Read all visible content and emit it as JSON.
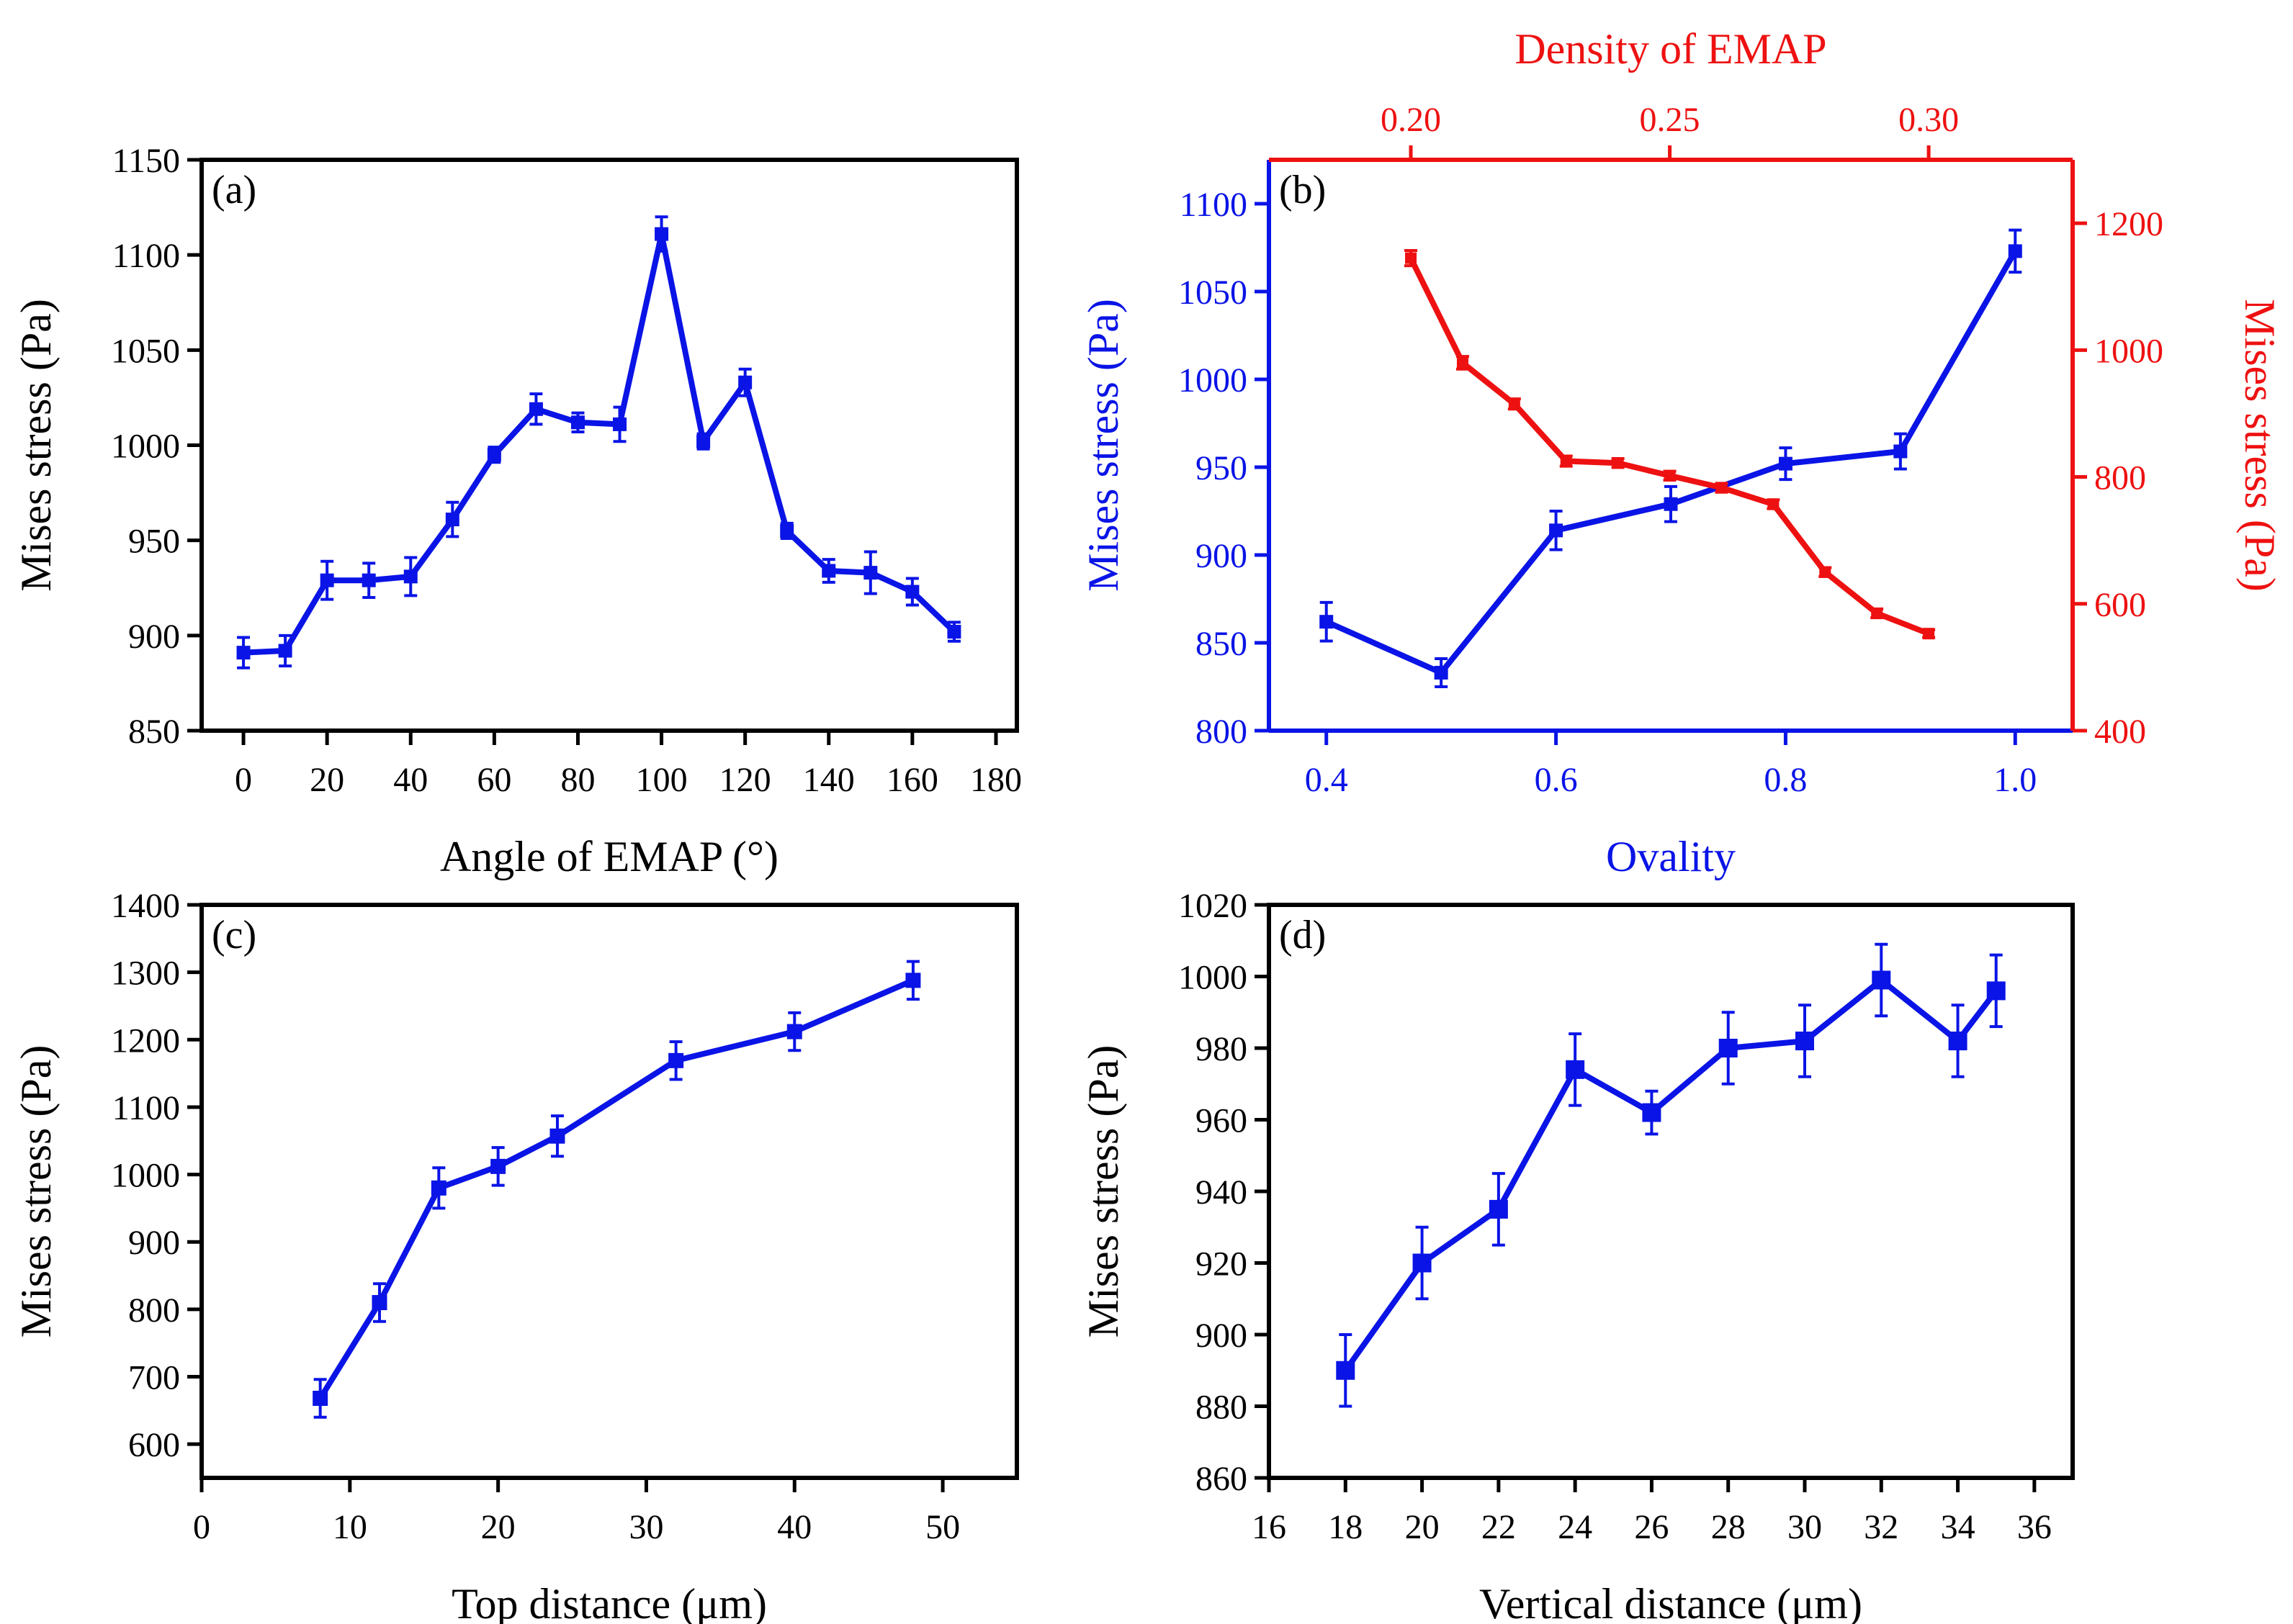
{
  "colors": {
    "blue": "#0a14e6",
    "red": "#ee1111",
    "black": "#000000"
  },
  "chart_data": [
    {
      "id": "a",
      "type": "line",
      "panel_label": "(a)",
      "xlabel": "Angle of EMAP (°)",
      "ylabel": "Mises stress (Pa)",
      "xlim": [
        -10,
        185
      ],
      "ylim": [
        850,
        1150
      ],
      "xticks": [
        0,
        20,
        40,
        60,
        80,
        100,
        120,
        140,
        160,
        180
      ],
      "yticks": [
        850,
        900,
        950,
        1000,
        1050,
        1100,
        1150
      ],
      "series": [
        {
          "name": "Mises stress",
          "color": "#0a14e6",
          "x": [
            0,
            10,
            20,
            30,
            40,
            50,
            60,
            70,
            80,
            90,
            100,
            110,
            120,
            130,
            140,
            150,
            160,
            170
          ],
          "y": [
            891,
            892,
            929,
            929,
            931,
            961,
            995,
            1019,
            1012,
            1011,
            1111,
            1002,
            1033,
            955,
            934,
            933,
            923,
            902
          ],
          "err": [
            8,
            8,
            10,
            9,
            10,
            9,
            4,
            8,
            5,
            9,
            9,
            4,
            7,
            4,
            6,
            11,
            7,
            5
          ]
        }
      ]
    },
    {
      "id": "b",
      "type": "line",
      "panel_label": "(b)",
      "xlabel": "Ovality",
      "ylabel": "Mises stress (Pa)",
      "y2label": "Mises stress (Pa)",
      "x2label": "Density of EMAP",
      "xlim": [
        0.35,
        1.05
      ],
      "ylim": [
        800,
        1125
      ],
      "xticks": [
        0.4,
        0.6,
        0.8,
        1.0
      ],
      "xtick_labels": [
        "0.4",
        "0.6",
        "0.8",
        "1.0"
      ],
      "yticks": [
        800,
        850,
        900,
        950,
        1000,
        1050,
        1100
      ],
      "x2lim": [
        0.1726,
        0.3278
      ],
      "y2lim": [
        400,
        1300
      ],
      "x2ticks": [
        0.2,
        0.25,
        0.3
      ],
      "x2tick_labels": [
        "0.20",
        "0.25",
        "0.30"
      ],
      "y2ticks": [
        400,
        600,
        800,
        1000,
        1200
      ],
      "series": [
        {
          "name": "Ovality",
          "axis": "primary",
          "color": "#0a14e6",
          "x": [
            0.4,
            0.5,
            0.6,
            0.7,
            0.8,
            0.9,
            1.0
          ],
          "y": [
            862,
            833,
            914,
            929,
            952,
            959,
            1073
          ],
          "err": [
            11,
            8,
            11,
            10,
            9,
            10,
            12
          ]
        },
        {
          "name": "Density",
          "axis": "secondary",
          "color": "#ee1111",
          "x": [
            0.2,
            0.21,
            0.22,
            0.23,
            0.24,
            0.25,
            0.26,
            0.27,
            0.28,
            0.29,
            0.3
          ],
          "y": [
            1145,
            980,
            915,
            825,
            822,
            802,
            783,
            757,
            650,
            585,
            553
          ],
          "err": [
            12,
            10,
            8,
            8,
            7,
            7,
            7,
            7,
            7,
            7,
            6
          ]
        }
      ]
    },
    {
      "id": "c",
      "type": "line",
      "panel_label": "(c)",
      "xlabel": "Top distance (μm)",
      "ylabel": "Mises stress (Pa)",
      "xlim": [
        0,
        55
      ],
      "ylim": [
        550,
        1400
      ],
      "xticks": [
        0,
        10,
        20,
        30,
        40,
        50
      ],
      "yticks": [
        600,
        700,
        800,
        900,
        1000,
        1100,
        1200,
        1300,
        1400
      ],
      "series": [
        {
          "name": "Mises stress",
          "color": "#0a14e6",
          "x": [
            8,
            12,
            16,
            20,
            24,
            32,
            40,
            48
          ],
          "y": [
            668,
            810,
            980,
            1012,
            1057,
            1169,
            1212,
            1288
          ],
          "err": [
            28,
            28,
            30,
            28,
            30,
            28,
            28,
            28
          ]
        }
      ]
    },
    {
      "id": "d",
      "type": "line",
      "panel_label": "(d)",
      "xlabel": "Vertical distance (μm)",
      "ylabel": "Mises stress (Pa)",
      "xlim": [
        16,
        37
      ],
      "ylim": [
        860,
        1020
      ],
      "xticks": [
        16,
        18,
        20,
        22,
        24,
        26,
        28,
        30,
        32,
        34,
        36
      ],
      "yticks": [
        860,
        880,
        900,
        920,
        940,
        960,
        980,
        1000,
        1020
      ],
      "series": [
        {
          "name": "Mises stress",
          "color": "#0a14e6",
          "x": [
            18,
            20,
            22,
            24,
            26,
            28,
            30,
            32,
            34,
            35
          ],
          "y": [
            890,
            920,
            935,
            974,
            962,
            980,
            982,
            999,
            982,
            996
          ],
          "err": [
            10,
            10,
            10,
            10,
            6,
            10,
            10,
            10,
            10,
            10
          ]
        }
      ]
    }
  ]
}
